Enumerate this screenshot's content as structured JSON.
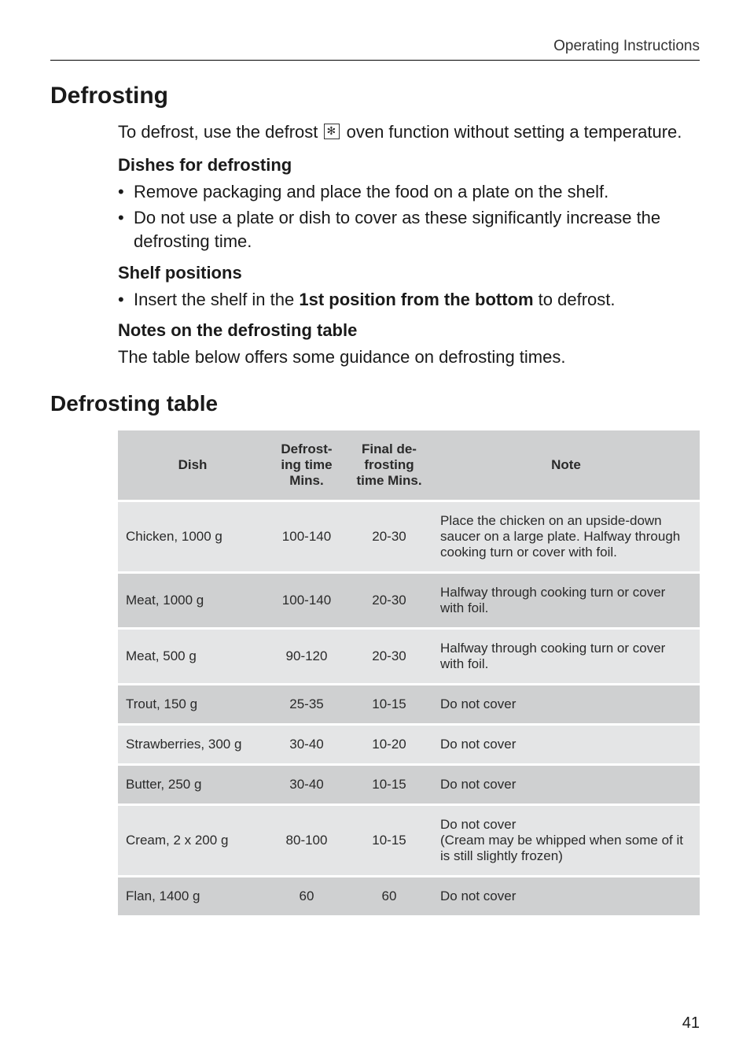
{
  "header": {
    "section": "Operating Instructions"
  },
  "title": "Defrosting",
  "intro": "To defrost, use the defrost     oven function without setting a temperature.",
  "intro_pre": "To defrost, use the defrost ",
  "intro_post": " oven function without setting a temperature.",
  "dishes": {
    "heading": "Dishes for defrosting",
    "items": [
      "Remove packaging and place the food on a plate on the shelf.",
      "Do not use a plate or dish to cover as these significantly increase the defrosting time."
    ]
  },
  "shelf": {
    "heading": "Shelf positions",
    "item_pre": "Insert the shelf in the ",
    "item_bold": "1st position from the bottom",
    "item_post": " to defrost."
  },
  "notes": {
    "heading": "Notes on the defrosting table",
    "text": "The table below offers some guidance on defrosting times."
  },
  "table_heading": "Defrosting table",
  "table": {
    "columns": [
      "Dish",
      "Defrosting time Mins.",
      "Final defrosting time Mins.",
      "Note"
    ],
    "col_dish": "Dish",
    "col_time_l1": "Defrost-",
    "col_time_l2": "ing time",
    "col_time_l3": "Mins.",
    "col_final_l1": "Final de-",
    "col_final_l2": "frosting",
    "col_final_l3": "time Mins.",
    "col_note": "Note",
    "header_bg": "#cfd0d1",
    "row_dark_bg": "#cfd0d1",
    "row_light_bg": "#e4e5e6",
    "font_size": 17,
    "rows": [
      {
        "shade": "light",
        "dish": "Chicken, 1000 g",
        "time": "100-140",
        "final": "20-30",
        "note": "Place the chicken on an upside-down saucer on a large plate. Halfway through cooking turn or cover with foil."
      },
      {
        "shade": "dark",
        "dish": "Meat, 1000 g",
        "time": "100-140",
        "final": "20-30",
        "note": "Halfway through cooking turn or cover with foil."
      },
      {
        "shade": "light",
        "dish": "Meat, 500 g",
        "time": "90-120",
        "final": "20-30",
        "note": "Halfway through cooking turn or cover with foil."
      },
      {
        "shade": "dark",
        "dish": "Trout, 150 g",
        "time": "25-35",
        "final": "10-15",
        "note": "Do not cover"
      },
      {
        "shade": "light",
        "dish": "Strawberries, 300 g",
        "time": "30-40",
        "final": "10-20",
        "note": "Do not cover"
      },
      {
        "shade": "dark",
        "dish": "Butter, 250 g",
        "time": "30-40",
        "final": "10-15",
        "note": "Do not cover"
      },
      {
        "shade": "light",
        "dish": "Cream, 2 x 200 g",
        "time": "80-100",
        "final": "10-15",
        "note": "Do not cover\n(Cream may be whipped when some of it is still slightly frozen)"
      },
      {
        "shade": "dark",
        "dish": "Flan, 1400 g",
        "time": "60",
        "final": "60",
        "note": "Do not cover"
      }
    ]
  },
  "page_number": "41",
  "colors": {
    "text": "#1a1a1a",
    "rule": "#000000",
    "table_header_bg": "#cfd0d1",
    "table_dark_bg": "#cfd0d1",
    "table_light_bg": "#e4e5e6",
    "background": "#ffffff"
  }
}
